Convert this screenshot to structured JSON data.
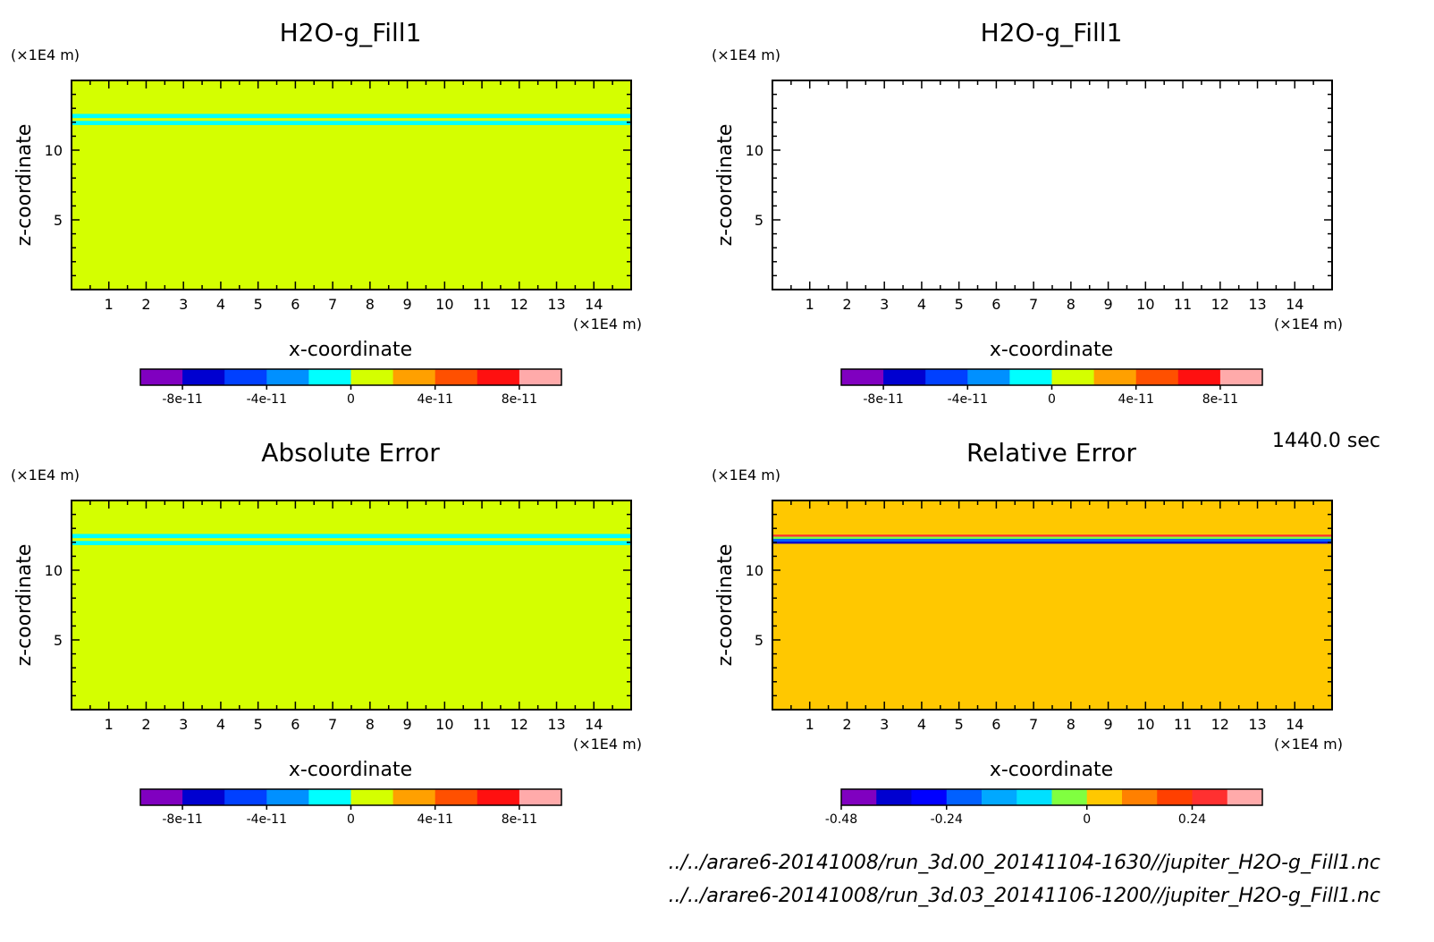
{
  "chart_data": [
    {
      "type": "heatmap",
      "title": "H2O-g_Fill1",
      "xlabel": "x-coordinate",
      "ylabel": "z-coordinate",
      "x_unit": "(×1E4 m)",
      "y_unit": "(×1E4 m)",
      "xlim": [
        0,
        15
      ],
      "ylim": [
        0,
        15
      ],
      "x_ticks": [
        "1",
        "2",
        "3",
        "4",
        "5",
        "6",
        "7",
        "8",
        "9",
        "10",
        "11",
        "12",
        "13",
        "14"
      ],
      "y_ticks": [
        "5",
        "10"
      ],
      "background_color": "#d4ff00",
      "bands": [
        {
          "z_from": 12.3,
          "z_to": 12.6,
          "color": "#00ffff"
        },
        {
          "z_from": 11.8,
          "z_to": 12.1,
          "color": "#00ffff"
        }
      ],
      "colorbar": {
        "colors": [
          "#8000c0",
          "#0000d0",
          "#0040ff",
          "#0090ff",
          "#00ffff",
          "#d4ff00",
          "#ffa000",
          "#ff5000",
          "#ff1010",
          "#ffaaaa"
        ],
        "labels": [
          "-8e-11",
          "-4e-11",
          "0",
          "4e-11",
          "8e-11"
        ],
        "label_positions": [
          1,
          3,
          5,
          7,
          9
        ]
      }
    },
    {
      "type": "heatmap",
      "title": "H2O-g_Fill1",
      "xlabel": "x-coordinate",
      "ylabel": "z-coordinate",
      "x_unit": "(×1E4 m)",
      "y_unit": "(×1E4 m)",
      "xlim": [
        0,
        15
      ],
      "ylim": [
        0,
        15
      ],
      "x_ticks": [
        "1",
        "2",
        "3",
        "4",
        "5",
        "6",
        "7",
        "8",
        "9",
        "10",
        "11",
        "12",
        "13",
        "14"
      ],
      "y_ticks": [
        "5",
        "10"
      ],
      "background_color": "#ffffff",
      "bands": [],
      "colorbar": {
        "colors": [
          "#8000c0",
          "#0000d0",
          "#0040ff",
          "#0090ff",
          "#00ffff",
          "#d4ff00",
          "#ffa000",
          "#ff5000",
          "#ff1010",
          "#ffaaaa"
        ],
        "labels": [
          "-8e-11",
          "-4e-11",
          "0",
          "4e-11",
          "8e-11"
        ],
        "label_positions": [
          1,
          3,
          5,
          7,
          9
        ]
      }
    },
    {
      "type": "heatmap",
      "title": "Absolute Error",
      "xlabel": "x-coordinate",
      "ylabel": "z-coordinate",
      "x_unit": "(×1E4 m)",
      "y_unit": "(×1E4 m)",
      "xlim": [
        0,
        15
      ],
      "ylim": [
        0,
        15
      ],
      "x_ticks": [
        "1",
        "2",
        "3",
        "4",
        "5",
        "6",
        "7",
        "8",
        "9",
        "10",
        "11",
        "12",
        "13",
        "14"
      ],
      "y_ticks": [
        "5",
        "10"
      ],
      "background_color": "#d4ff00",
      "bands": [
        {
          "z_from": 12.3,
          "z_to": 12.6,
          "color": "#00ffff"
        },
        {
          "z_from": 11.8,
          "z_to": 12.1,
          "color": "#00ffff"
        }
      ],
      "colorbar": {
        "colors": [
          "#8000c0",
          "#0000d0",
          "#0040ff",
          "#0090ff",
          "#00ffff",
          "#d4ff00",
          "#ffa000",
          "#ff5000",
          "#ff1010",
          "#ffaaaa"
        ],
        "labels": [
          "-8e-11",
          "-4e-11",
          "0",
          "4e-11",
          "8e-11"
        ],
        "label_positions": [
          1,
          3,
          5,
          7,
          9
        ]
      }
    },
    {
      "type": "heatmap",
      "title": "Relative Error",
      "xlabel": "x-coordinate",
      "ylabel": "z-coordinate",
      "x_unit": "(×1E4 m)",
      "y_unit": "(×1E4 m)",
      "xlim": [
        0,
        15
      ],
      "ylim": [
        0,
        15
      ],
      "x_ticks": [
        "1",
        "2",
        "3",
        "4",
        "5",
        "6",
        "7",
        "8",
        "9",
        "10",
        "11",
        "12",
        "13",
        "14"
      ],
      "y_ticks": [
        "5",
        "10"
      ],
      "background_color": "#ffc800",
      "bands": [
        {
          "z_from": 12.4,
          "z_to": 12.55,
          "color": "#ff3030"
        },
        {
          "z_from": 12.25,
          "z_to": 12.4,
          "color": "#80ff40"
        },
        {
          "z_from": 12.05,
          "z_to": 12.25,
          "color": "#0060ff"
        },
        {
          "z_from": 11.9,
          "z_to": 12.05,
          "color": "#0000d0"
        }
      ],
      "colorbar": {
        "colors": [
          "#8000c0",
          "#0000d0",
          "#0000ff",
          "#0060ff",
          "#00a8ff",
          "#00e0ff",
          "#80ff40",
          "#ffc800",
          "#ff8000",
          "#ff4000",
          "#ff3030",
          "#ffaaaa"
        ],
        "labels": [
          "-0.48",
          "-0.24",
          "0",
          "0.24"
        ],
        "label_positions": [
          0,
          3,
          7,
          10
        ]
      }
    }
  ],
  "time_label": "1440.0 sec",
  "footer_lines": [
    "../../arare6-20141008/run_3d.00_20141104-1630//jupiter_H2O-g_Fill1.nc",
    "../../arare6-20141008/run_3d.03_20141106-1200//jupiter_H2O-g_Fill1.nc"
  ]
}
